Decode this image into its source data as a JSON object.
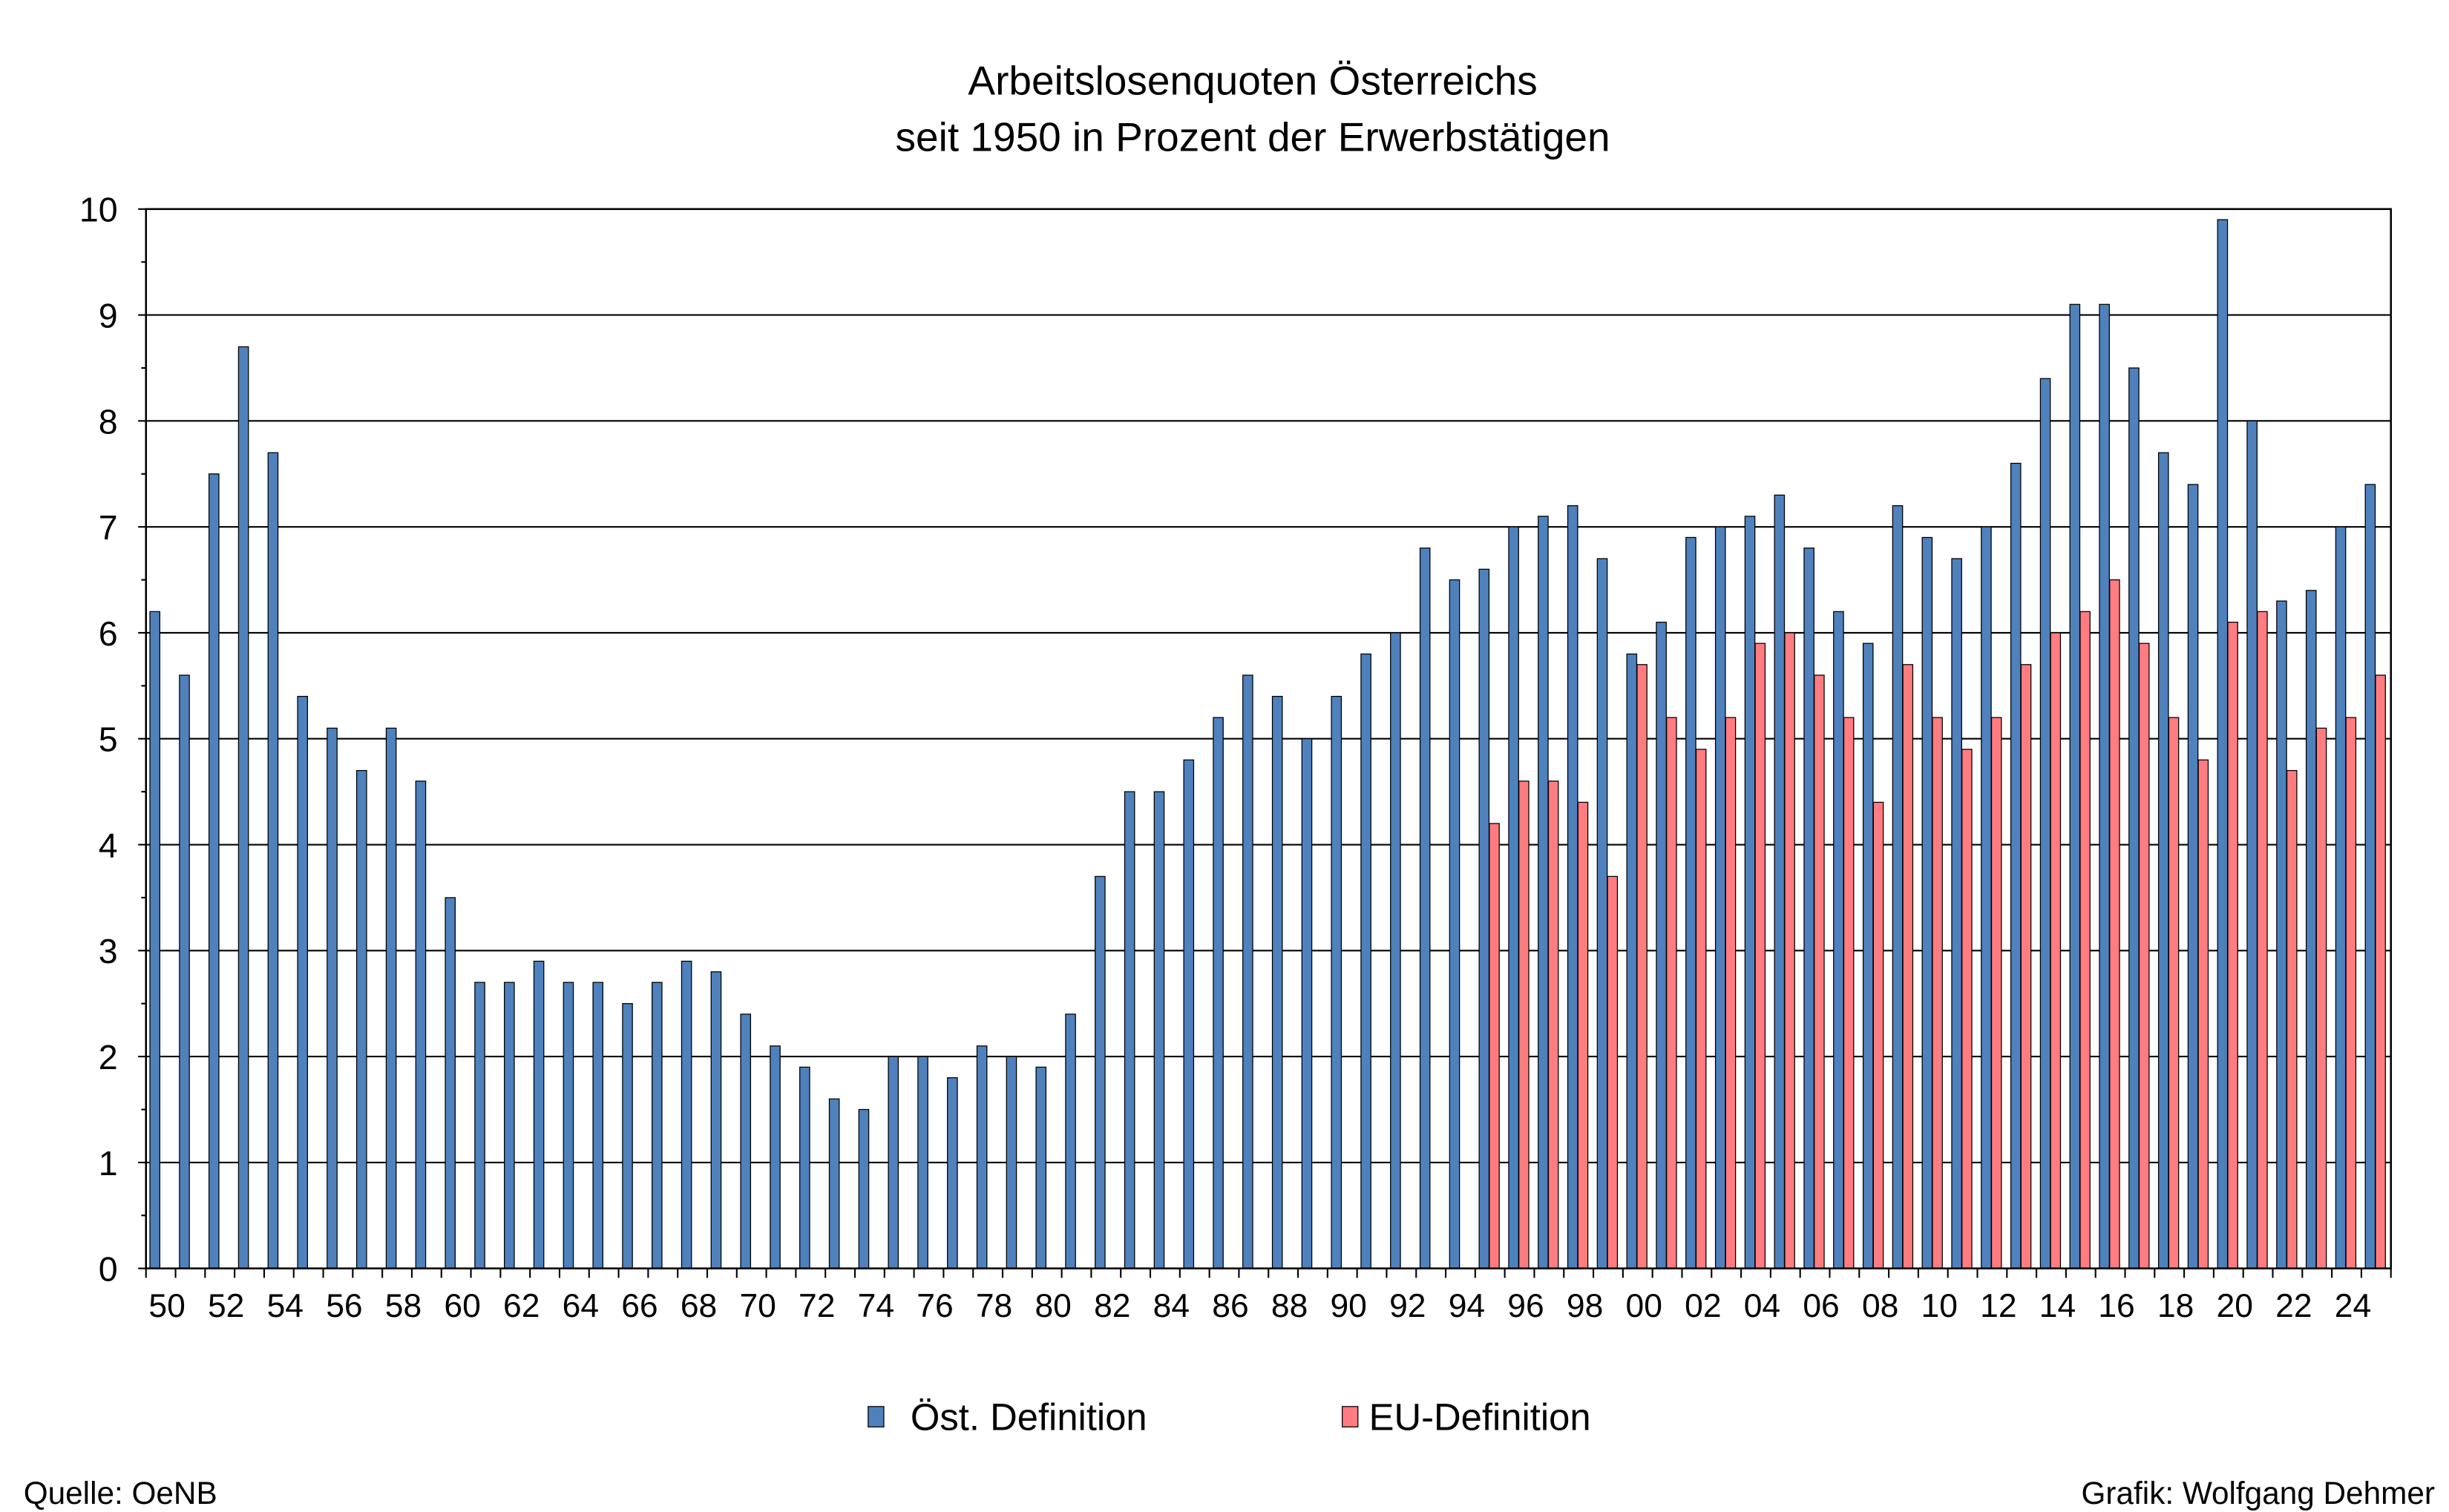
{
  "chart_data": {
    "type": "bar",
    "title": "Arbeitslosenquoten Österreichs",
    "subtitle": "seit 1950 in Prozent der Erwerbstätigen",
    "xlabel": "",
    "ylabel": "",
    "ylim": [
      0,
      10
    ],
    "yticks": [
      "0",
      "1",
      "2",
      "3",
      "4",
      "5",
      "6",
      "7",
      "8",
      "9",
      "10"
    ],
    "grid": true,
    "legend_position": "bottom-center",
    "x": [
      1950,
      1951,
      1952,
      1953,
      1954,
      1955,
      1956,
      1957,
      1958,
      1959,
      1960,
      1961,
      1962,
      1963,
      1964,
      1965,
      1966,
      1967,
      1968,
      1969,
      1970,
      1971,
      1972,
      1973,
      1974,
      1975,
      1976,
      1977,
      1978,
      1979,
      1980,
      1981,
      1982,
      1983,
      1984,
      1985,
      1986,
      1987,
      1988,
      1989,
      1990,
      1991,
      1992,
      1993,
      1994,
      1995,
      1996,
      1997,
      1998,
      1999,
      2000,
      2001,
      2002,
      2003,
      2004,
      2005,
      2006,
      2007,
      2008,
      2009,
      2010,
      2011,
      2012,
      2013,
      2014,
      2015,
      2016,
      2017,
      2018,
      2019,
      2020,
      2021,
      2022,
      2023,
      2024,
      2025
    ],
    "xtick_labels": [
      "50",
      "52",
      "54",
      "56",
      "58",
      "60",
      "62",
      "64",
      "66",
      "68",
      "70",
      "72",
      "74",
      "76",
      "78",
      "80",
      "82",
      "84",
      "86",
      "88",
      "90",
      "92",
      "94",
      "96",
      "98",
      "00",
      "02",
      "04",
      "06",
      "08",
      "10",
      "12",
      "14",
      "16",
      "18",
      "20",
      "22",
      "24"
    ],
    "series": [
      {
        "name": "Öst. Definition",
        "color": "#4F81BD",
        "values": [
          6.2,
          5.6,
          7.5,
          8.7,
          7.7,
          5.4,
          5.1,
          4.7,
          5.1,
          4.6,
          3.5,
          2.7,
          2.7,
          2.9,
          2.7,
          2.7,
          2.5,
          2.7,
          2.9,
          2.8,
          2.4,
          2.1,
          1.9,
          1.6,
          1.5,
          2.0,
          2.0,
          1.8,
          2.1,
          2.0,
          1.9,
          2.4,
          3.7,
          4.5,
          4.5,
          4.8,
          5.2,
          5.6,
          5.4,
          5.0,
          5.4,
          5.8,
          6.0,
          6.8,
          6.5,
          6.6,
          7.0,
          7.1,
          7.2,
          6.7,
          5.8,
          6.1,
          6.9,
          7.0,
          7.1,
          7.3,
          6.8,
          6.2,
          5.9,
          7.2,
          6.9,
          6.7,
          7.0,
          7.6,
          8.4,
          9.1,
          9.1,
          8.5,
          7.7,
          7.4,
          9.9,
          8.0,
          6.3,
          6.4,
          7.0,
          7.4
        ]
      },
      {
        "name": "EU-Definition",
        "color": "#FF7C80",
        "values": [
          null,
          null,
          null,
          null,
          null,
          null,
          null,
          null,
          null,
          null,
          null,
          null,
          null,
          null,
          null,
          null,
          null,
          null,
          null,
          null,
          null,
          null,
          null,
          null,
          null,
          null,
          null,
          null,
          null,
          null,
          null,
          null,
          null,
          null,
          null,
          null,
          null,
          null,
          null,
          null,
          null,
          null,
          null,
          null,
          null,
          4.2,
          4.6,
          4.6,
          4.4,
          3.7,
          5.7,
          5.2,
          4.9,
          5.2,
          5.9,
          6.0,
          5.6,
          5.2,
          4.4,
          5.7,
          5.2,
          4.9,
          5.2,
          5.7,
          6.0,
          6.2,
          6.5,
          5.9,
          5.2,
          4.8,
          6.1,
          6.2,
          4.7,
          5.1,
          5.2,
          5.6
        ]
      }
    ]
  },
  "footer": {
    "source": "Quelle: OeNB",
    "credit": "Grafik: Wolfgang Dehmer"
  }
}
